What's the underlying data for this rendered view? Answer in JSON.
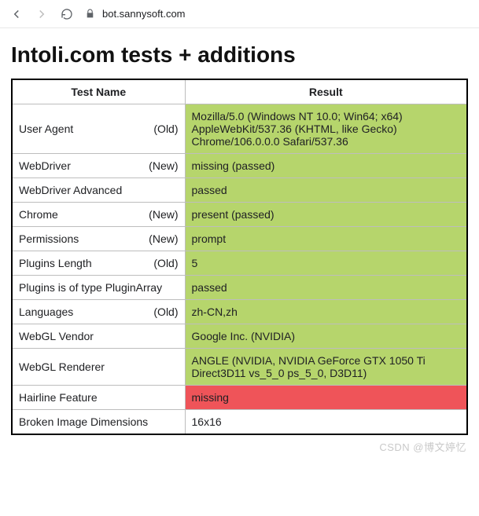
{
  "browser": {
    "url": "bot.sannysoft.com"
  },
  "page": {
    "title": "Intoli.com tests + additions"
  },
  "table": {
    "headers": {
      "name": "Test Name",
      "result": "Result"
    },
    "rows": [
      {
        "name": "User Agent",
        "tag": "(Old)",
        "result": "Mozilla/5.0 (Windows NT 10.0; Win64; x64) AppleWebKit/537.36 (KHTML, like Gecko) Chrome/106.0.0.0 Safari/537.36",
        "status": "pass"
      },
      {
        "name": "WebDriver",
        "tag": "(New)",
        "result": "missing (passed)",
        "status": "pass"
      },
      {
        "name": "WebDriver Advanced",
        "tag": "",
        "result": "passed",
        "status": "pass"
      },
      {
        "name": "Chrome",
        "tag": "(New)",
        "result": "present (passed)",
        "status": "pass"
      },
      {
        "name": "Permissions",
        "tag": "(New)",
        "result": "prompt",
        "status": "pass"
      },
      {
        "name": "Plugins Length",
        "tag": "(Old)",
        "result": "5",
        "status": "pass"
      },
      {
        "name": "Plugins is of type PluginArray",
        "tag": "",
        "result": "passed",
        "status": "pass"
      },
      {
        "name": "Languages",
        "tag": "(Old)",
        "result": "zh-CN,zh",
        "status": "pass"
      },
      {
        "name": "WebGL Vendor",
        "tag": "",
        "result": "Google Inc. (NVIDIA)",
        "status": "pass"
      },
      {
        "name": "WebGL Renderer",
        "tag": "",
        "result": "ANGLE (NVIDIA, NVIDIA GeForce GTX 1050 Ti Direct3D11 vs_5_0 ps_5_0, D3D11)",
        "status": "pass"
      },
      {
        "name": "Hairline Feature",
        "tag": "",
        "result": "missing",
        "status": "fail"
      },
      {
        "name": "Broken Image Dimensions",
        "tag": "",
        "result": "16x16",
        "status": "plain"
      }
    ]
  },
  "colors": {
    "pass_bg": "#b6d56c",
    "fail_bg": "#ef5459",
    "border": "#bdbdbd",
    "outer_border": "#000000"
  },
  "watermark": "CSDN @博文婷忆"
}
